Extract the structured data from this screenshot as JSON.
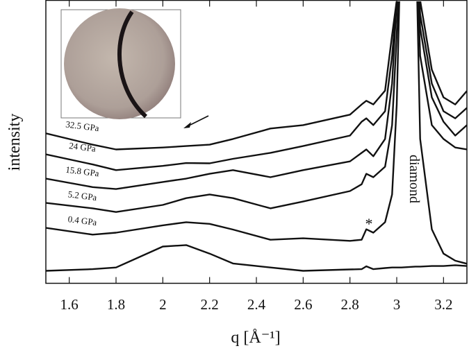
{
  "chart_data": {
    "type": "line",
    "xlabel": "q [Å⁻¹]",
    "ylabel": "intensity",
    "x": [
      1.5,
      1.7,
      1.8,
      2.0,
      2.1,
      2.2,
      2.3,
      2.46,
      2.6,
      2.8,
      2.85,
      2.87,
      2.9,
      2.95,
      2.98,
      3.0,
      3.02,
      3.08,
      3.1,
      3.15,
      3.2,
      3.25,
      3.3
    ],
    "series": [
      {
        "color": "#111111",
        "values": [
          4.4,
          5,
          5.6,
          13,
          13.5,
          10.5,
          7,
          5.6,
          4.4,
          4.9,
          5,
          6,
          5,
          5.4,
          5.6,
          5.6,
          5.6,
          5.9,
          5.9,
          6.1,
          6.1,
          6.4,
          6.1
        ]
      },
      {
        "name": "0.4 GPa",
        "color": "#111111",
        "values": [
          19.6,
          17.2,
          17.9,
          20.5,
          21.6,
          21,
          19,
          15.4,
          15.9,
          15,
          15.4,
          19.1,
          17.9,
          21.6,
          31.4,
          63.2,
          130,
          130,
          51,
          19.1,
          10.5,
          8,
          6.9
        ]
      },
      {
        "name": "5.2 GPa",
        "color": "#111111",
        "values": [
          28.4,
          26.5,
          25.2,
          27.7,
          30.1,
          31.4,
          30.1,
          26.5,
          28.9,
          32.6,
          35,
          38.7,
          37.5,
          41.2,
          55.9,
          87.7,
          130,
          130,
          80.4,
          55.9,
          51,
          48,
          47.3
        ]
      },
      {
        "name": "15.8 GPa",
        "color": "#111111",
        "values": [
          37,
          34,
          33.3,
          35.8,
          37,
          38.7,
          40,
          37.5,
          40,
          43.1,
          46.1,
          47.3,
          44.9,
          51,
          70.6,
          100,
          130,
          130,
          90.2,
          65.7,
          57.1,
          52.2,
          55.9
        ]
      },
      {
        "name": "24 GPa",
        "color": "#111111",
        "values": [
          45.6,
          42,
          40,
          41.5,
          42.5,
          42.4,
          44,
          46.1,
          48.5,
          52.2,
          57.1,
          58.3,
          55.9,
          60.8,
          80.4,
          100,
          130,
          130,
          95.1,
          70.6,
          60.8,
          58.3,
          62
        ]
      },
      {
        "name": "32.5 GPa",
        "color": "#111111",
        "values": [
          53,
          49,
          47.3,
          48,
          48.5,
          49,
          51,
          54.7,
          55.9,
          59.6,
          63.2,
          64.5,
          63.2,
          68.1,
          87.7,
          100,
          130,
          130,
          100,
          75.5,
          65.7,
          63.2,
          68
        ]
      }
    ],
    "annotations": [
      "diamond",
      "*"
    ],
    "xlim": [
      1.5,
      3.3
    ],
    "xticks": [
      1.6,
      1.8,
      2,
      2.2,
      2.4,
      2.6,
      2.8,
      3,
      3.2
    ],
    "ylim": [
      0,
      100
    ]
  }
}
